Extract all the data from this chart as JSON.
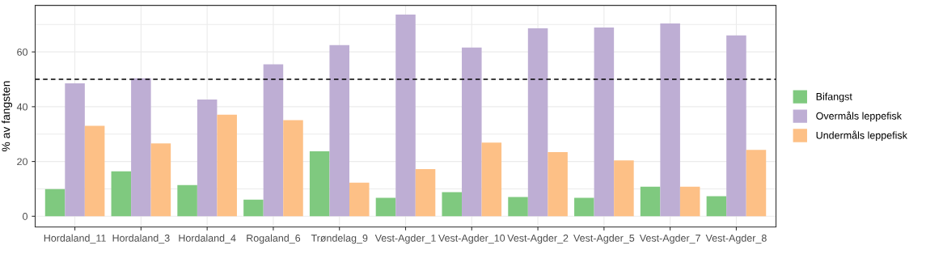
{
  "chart_data": {
    "type": "bar",
    "ylabel": "% av fangsten",
    "categories": [
      "Hordaland_11",
      "Hordaland_3",
      "Hordaland_4",
      "Rogaland_6",
      "Trøndelag_9",
      "Vest-Agder_1",
      "Vest-Agder_10",
      "Vest-Agder_2",
      "Vest-Agder_5",
      "Vest-Agder_7",
      "Vest-Agder_8"
    ],
    "series": [
      {
        "name": "Bifangst",
        "color": "#7fc97f",
        "values": [
          9.9,
          16.4,
          11.4,
          6.1,
          23.7,
          6.7,
          8.8,
          7.0,
          6.7,
          10.8,
          7.3
        ]
      },
      {
        "name": "Overmåls leppefisk",
        "color": "#beaed4",
        "values": [
          48.5,
          50.4,
          42.6,
          55.5,
          62.5,
          73.6,
          61.6,
          68.6,
          68.9,
          70.4,
          66.0
        ]
      },
      {
        "name": "Undermåls leppefisk",
        "color": "#fdc086",
        "values": [
          33.0,
          26.6,
          37.1,
          35.1,
          12.3,
          17.2,
          26.9,
          23.4,
          20.4,
          10.8,
          24.2
        ]
      }
    ],
    "ylim": [
      -3.9,
      77.0
    ],
    "yticks": [
      0,
      20,
      40,
      60
    ],
    "ref_lines": [
      {
        "axis": "y",
        "value": 50,
        "color": "#000000",
        "line_style": "dashed"
      }
    ],
    "grid": true,
    "legend": "right"
  }
}
